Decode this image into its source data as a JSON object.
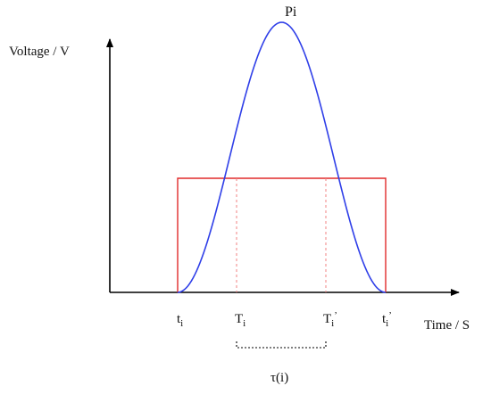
{
  "diagram": {
    "y_axis_label": "Voltage / V",
    "x_axis_label": "Time / S",
    "peak_label": "Pi",
    "t_start": {
      "base": "t",
      "sub": "i"
    },
    "T_rise": {
      "base": "T",
      "sub": "i"
    },
    "T_fall": {
      "base": "T",
      "sub": "i",
      "prime": "’"
    },
    "t_end": {
      "base": "t",
      "sub": "i",
      "prime": "’"
    },
    "interval_label": "τ(i)"
  },
  "colors": {
    "axis": "#000000",
    "pulse_curve": "#2f3fe8",
    "window_rect": "#e02a2a",
    "dashed_guides": "#f08080",
    "bracket": "#000000"
  }
}
